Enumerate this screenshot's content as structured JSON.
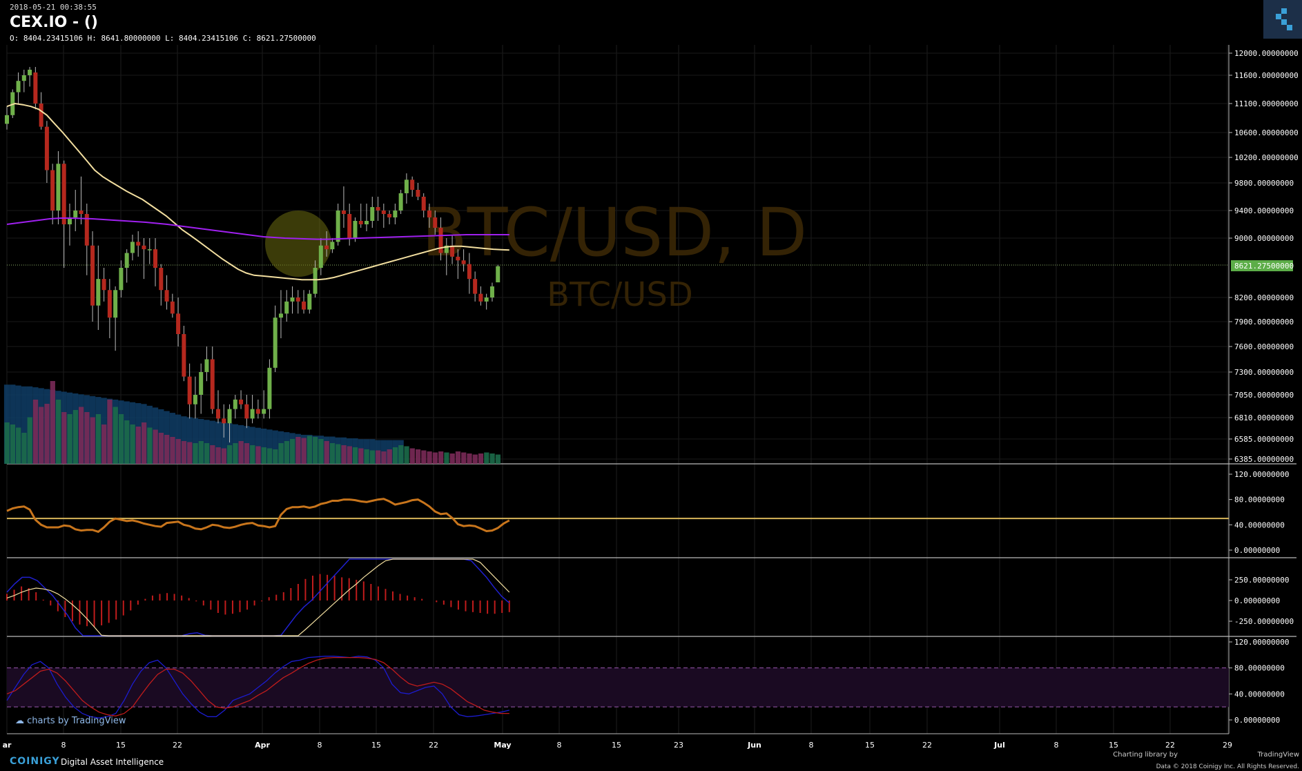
{
  "header": {
    "timestamp": "2018-05-21 00:38:55",
    "title": "CEX.IO -  ()",
    "ohlc": "O: 8404.23415106 H: 8641.80000000 L: 8404.23415106 C: 8621.27500000"
  },
  "watermark": {
    "big": "BTC/USD, D",
    "small": "BTC/USD"
  },
  "last_price_label": "8621.27500000",
  "footer": {
    "tv_brand": "charts by TradingView",
    "coinigy": "COINIGY",
    "tagline": "Digital Asset Intelligence",
    "charting_lib": "Charting library by",
    "tv_name": "TradingView",
    "data_credit": "Data © 2018  Coinigy Inc. All Rights Reserved."
  },
  "colors": {
    "up": "#6fb04a",
    "down": "#b5281e",
    "ma_fast": "#f3dfa0",
    "ma_slow": "#a020f0",
    "rsi": "#c8751c",
    "macd": "#2020d0",
    "signal": "#f3dfa0",
    "stoch_k": "#1c1ccf",
    "stoch_d": "#c01c1c",
    "accent": "#3aa0d8"
  },
  "chart_data": [
    {
      "type": "candlestick",
      "title": "BTC/USD, D",
      "price_axis_ticks": [
        "12000.00000000",
        "11600.00000000",
        "11100.00000000",
        "10600.00000000",
        "10200.00000000",
        "9800.00000000",
        "9400.00000000",
        "9000.00000000",
        "8200.00000000",
        "7900.00000000",
        "7600.00000000",
        "7300.00000000",
        "7050.00000000",
        "6810.00000000",
        "6585.00000000",
        "6385.00000000"
      ],
      "time_axis_labels": [
        "ar",
        "8",
        "15",
        "22",
        "Apr",
        "8",
        "15",
        "22",
        "May",
        "8",
        "15",
        "23",
        "Jun",
        "8",
        "15",
        "22",
        "Jul",
        "8",
        "15",
        "22",
        "29"
      ],
      "candles": [
        [
          10750,
          11050,
          10650,
          10900
        ],
        [
          10900,
          11350,
          10850,
          11300
        ],
        [
          11300,
          11650,
          11100,
          11500
        ],
        [
          11500,
          11700,
          11300,
          11600
        ],
        [
          11600,
          11750,
          11400,
          11700
        ],
        [
          11650,
          11750,
          11000,
          11100
        ],
        [
          11100,
          11300,
          10650,
          10700
        ],
        [
          10700,
          10800,
          9800,
          10000
        ],
        [
          10000,
          10100,
          9200,
          9400
        ],
        [
          9400,
          10300,
          9200,
          10100
        ],
        [
          10100,
          10150,
          8600,
          9200
        ],
        [
          9200,
          9500,
          8900,
          9300
        ],
        [
          9300,
          9700,
          9100,
          9400
        ],
        [
          9400,
          9900,
          9200,
          9350
        ],
        [
          9350,
          9500,
          8500,
          8900
        ],
        [
          8900,
          9100,
          7900,
          8100
        ],
        [
          8100,
          8900,
          7800,
          8450
        ],
        [
          8450,
          8600,
          8150,
          8300
        ],
        [
          8300,
          8450,
          7700,
          7950
        ],
        [
          7950,
          8350,
          7550,
          8300
        ],
        [
          8300,
          8700,
          8200,
          8600
        ],
        [
          8600,
          8850,
          8400,
          8800
        ],
        [
          8800,
          9050,
          8700,
          8950
        ],
        [
          8950,
          9100,
          8750,
          8900
        ],
        [
          8900,
          9000,
          8450,
          8850
        ],
        [
          8850,
          9000,
          8650,
          8850
        ],
        [
          8850,
          9000,
          8350,
          8600
        ],
        [
          8600,
          8650,
          8100,
          8300
        ],
        [
          8300,
          8500,
          8050,
          8150
        ],
        [
          8150,
          8250,
          7950,
          8000
        ],
        [
          8000,
          8200,
          7600,
          7750
        ],
        [
          7750,
          7850,
          7200,
          7250
        ],
        [
          7250,
          7400,
          6800,
          6950
        ],
        [
          6950,
          7250,
          6800,
          7050
        ],
        [
          7050,
          7400,
          6850,
          7300
        ],
        [
          7300,
          7600,
          7200,
          7450
        ],
        [
          7450,
          7600,
          6850,
          6900
        ],
        [
          6900,
          7100,
          6750,
          6800
        ],
        [
          6800,
          6950,
          6600,
          6750
        ],
        [
          6750,
          6950,
          6550,
          6900
        ],
        [
          6900,
          7050,
          6800,
          7000
        ],
        [
          7000,
          7100,
          6900,
          6950
        ],
        [
          6950,
          7050,
          6700,
          6800
        ],
        [
          6800,
          7050,
          6750,
          6900
        ],
        [
          6900,
          7000,
          6800,
          6850
        ],
        [
          6850,
          7100,
          6800,
          6900
        ],
        [
          6900,
          7450,
          6800,
          7350
        ],
        [
          7350,
          8100,
          7300,
          7950
        ],
        [
          7950,
          8300,
          7700,
          8000
        ],
        [
          8000,
          8300,
          7900,
          8150
        ],
        [
          8150,
          8350,
          8000,
          8200
        ],
        [
          8200,
          8300,
          8000,
          8150
        ],
        [
          8150,
          8300,
          8000,
          8050
        ],
        [
          8050,
          8300,
          8000,
          8250
        ],
        [
          8250,
          8700,
          8200,
          8600
        ],
        [
          8600,
          9000,
          8500,
          8900
        ],
        [
          8900,
          9100,
          8750,
          8850
        ],
        [
          8850,
          9000,
          8800,
          8950
        ],
        [
          8950,
          9500,
          8900,
          9400
        ],
        [
          9400,
          9750,
          9150,
          9350
        ],
        [
          9350,
          9500,
          8900,
          9000
        ],
        [
          9000,
          9300,
          8950,
          9250
        ],
        [
          9250,
          9500,
          9150,
          9200
        ],
        [
          9200,
          9500,
          9100,
          9250
        ],
        [
          9250,
          9600,
          9150,
          9450
        ],
        [
          9450,
          9600,
          9250,
          9400
        ],
        [
          9400,
          9500,
          9150,
          9350
        ],
        [
          9350,
          9400,
          9200,
          9300
        ],
        [
          9300,
          9500,
          9200,
          9400
        ],
        [
          9400,
          9700,
          9350,
          9650
        ],
        [
          9650,
          9950,
          9500,
          9850
        ],
        [
          9850,
          9900,
          9600,
          9700
        ],
        [
          9700,
          9800,
          9550,
          9600
        ],
        [
          9600,
          9650,
          9300,
          9400
        ],
        [
          9400,
          9500,
          9150,
          9300
        ],
        [
          9300,
          9400,
          9050,
          9150
        ],
        [
          9150,
          9300,
          8700,
          8800
        ],
        [
          8800,
          9000,
          8500,
          8900
        ],
        [
          8900,
          9050,
          8650,
          8750
        ],
        [
          8750,
          8850,
          8450,
          8700
        ],
        [
          8700,
          8850,
          8550,
          8650
        ],
        [
          8650,
          8800,
          8250,
          8450
        ],
        [
          8450,
          8550,
          8150,
          8250
        ],
        [
          8250,
          8350,
          8100,
          8150
        ],
        [
          8150,
          8250,
          8050,
          8200
        ],
        [
          8200,
          8400,
          8150,
          8350
        ],
        [
          8404.23,
          8641.8,
          8404.23,
          8621.28
        ]
      ],
      "ma_fast": [
        11050,
        11100,
        11080,
        11050,
        11000,
        10900,
        10750,
        10600,
        10450,
        10300,
        10150,
        10000,
        9900,
        9820,
        9750,
        9680,
        9620,
        9560,
        9480,
        9400,
        9320,
        9220,
        9120,
        9040,
        8960,
        8880,
        8800,
        8720,
        8650,
        8580,
        8530,
        8500,
        8490,
        8480,
        8470,
        8460,
        8450,
        8440,
        8440,
        8440,
        8450,
        8470,
        8500,
        8530,
        8560,
        8590,
        8620,
        8650,
        8680,
        8710,
        8740,
        8770,
        8800,
        8830,
        8860,
        8880,
        8890,
        8890,
        8880,
        8870,
        8860,
        8850,
        8845,
        8840
      ],
      "ma_slow": [
        9200,
        9220,
        9240,
        9260,
        9280,
        9290,
        9290,
        9285,
        9280,
        9270,
        9260,
        9250,
        9240,
        9230,
        9215,
        9200,
        9180,
        9160,
        9140,
        9120,
        9100,
        9080,
        9060,
        9040,
        9020,
        9010,
        9000,
        8995,
        8990,
        8985,
        8985,
        8990,
        8995,
        9000,
        9005,
        9010,
        9015,
        9020,
        9025,
        9030,
        9035,
        9040,
        9045,
        9050,
        9050,
        9050,
        9050,
        9050
      ],
      "volume": [
        40,
        38,
        35,
        30,
        45,
        62,
        55,
        58,
        80,
        62,
        50,
        48,
        52,
        55,
        50,
        45,
        48,
        38,
        62,
        55,
        48,
        42,
        38,
        36,
        40,
        35,
        33,
        30,
        28,
        26,
        24,
        22,
        21,
        20,
        22,
        20,
        18,
        16,
        15,
        18,
        20,
        22,
        20,
        18,
        17,
        16,
        15,
        14,
        20,
        22,
        24,
        26,
        25,
        27,
        26,
        24,
        22,
        20,
        19,
        18,
        17,
        16,
        15,
        14,
        13,
        13,
        12,
        14,
        16,
        18,
        17,
        15,
        14,
        13,
        12,
        11,
        12,
        11,
        10,
        12,
        11,
        10,
        9,
        10,
        11,
        10,
        9
      ],
      "volume_ma": [
        90,
        90,
        89,
        88,
        88,
        87,
        86,
        85,
        84,
        83,
        82,
        81,
        80,
        79,
        78,
        77,
        76,
        75,
        74,
        73,
        72,
        71,
        70,
        69,
        68,
        66,
        64,
        62,
        60,
        58,
        56,
        54,
        53,
        52,
        51,
        50,
        49,
        48,
        47,
        46,
        45,
        44,
        43,
        42,
        41,
        40,
        39,
        38,
        37,
        36,
        35,
        34,
        33,
        33,
        32,
        32,
        31,
        31,
        30,
        30,
        29,
        29,
        28,
        28,
        28,
        27,
        27,
        27,
        27,
        27
      ]
    },
    {
      "type": "line",
      "title": "RSI",
      "axis_ticks": [
        "120.00000000",
        "80.00000000",
        "40.00000000",
        "0.00000000"
      ],
      "level": 50,
      "values": [
        62,
        66,
        68,
        69,
        64,
        48,
        40,
        36,
        36,
        36,
        39,
        38,
        33,
        31,
        32,
        32,
        29,
        36,
        45,
        50,
        48,
        46,
        47,
        45,
        42,
        40,
        38,
        37,
        43,
        44,
        45,
        40,
        38,
        34,
        33,
        36,
        40,
        39,
        36,
        35,
        37,
        40,
        42,
        43,
        39,
        38,
        36,
        38,
        56,
        65,
        68,
        68,
        69,
        67,
        69,
        73,
        75,
        78,
        78,
        80,
        80,
        79,
        77,
        76,
        78,
        80,
        81,
        77,
        72,
        74,
        76,
        79,
        80,
        75,
        69,
        61,
        57,
        58,
        51,
        41,
        38,
        39,
        38,
        34,
        30,
        31,
        35,
        42,
        47
      ]
    },
    {
      "type": "line",
      "title": "MACD",
      "axis_ticks": [
        "250.00000000",
        "0.00000000",
        "-250.00000000"
      ],
      "series": [
        {
          "values": [
            100,
            200,
            280,
            280,
            240,
            150,
            60,
            -60,
            -180,
            -330,
            -480,
            -600,
            -700,
            -780,
            -850,
            -900,
            -950,
            -920,
            -850,
            -780,
            -680,
            -580,
            -490,
            -430,
            -400,
            -390,
            -420,
            -480,
            -560,
            -680,
            -820,
            -920,
            -900,
            -850,
            -700,
            -550,
            -420,
            -300,
            -180,
            -80,
            0,
            100,
            200,
            300,
            400,
            500,
            550,
            600,
            600,
            650,
            700,
            750,
            800,
            820,
            830,
            810,
            790,
            790,
            780,
            700,
            600,
            480,
            380,
            280,
            160,
            50,
            -30
          ]
        },
        {
          "values": [
            30,
            60,
            100,
            130,
            150,
            140,
            120,
            80,
            20,
            -50,
            -130,
            -220,
            -320,
            -420,
            -500,
            -580,
            -650,
            -690,
            -710,
            -720,
            -710,
            -690,
            -660,
            -630,
            -600,
            -570,
            -560,
            -570,
            -590,
            -620,
            -660,
            -710,
            -740,
            -760,
            -750,
            -720,
            -680,
            -630,
            -570,
            -500,
            -430,
            -350,
            -270,
            -190,
            -110,
            -30,
            50,
            130,
            200,
            280,
            350,
            420,
            480,
            540,
            600,
            640,
            680,
            700,
            710,
            710,
            700,
            680,
            650,
            600,
            540,
            460,
            370,
            280,
            190,
            100
          ]
        }
      ],
      "histogram": [
        80,
        130,
        170,
        150,
        100,
        10,
        -60,
        -130,
        -200,
        -250,
        -290,
        -310,
        -320,
        -300,
        -270,
        -230,
        -180,
        -120,
        -50,
        20,
        60,
        80,
        90,
        80,
        60,
        30,
        -10,
        -60,
        -110,
        -150,
        -170,
        -160,
        -140,
        -110,
        -60,
        -10,
        40,
        70,
        100,
        150,
        200,
        260,
        300,
        320,
        310,
        300,
        280,
        270,
        250,
        230,
        200,
        170,
        140,
        110,
        80,
        60,
        40,
        20,
        0,
        -20,
        -50,
        -80,
        -110,
        -130,
        -140,
        -150,
        -160,
        -160,
        -150,
        -140
      ]
    },
    {
      "type": "line",
      "title": "Stochastic",
      "axis_ticks": [
        "120.00000000",
        "80.00000000",
        "40.00000000",
        "0.00000000"
      ],
      "band": [
        20,
        80
      ],
      "series": [
        {
          "values": [
            30,
            50,
            70,
            85,
            90,
            80,
            55,
            35,
            20,
            10,
            5,
            3,
            5,
            10,
            30,
            55,
            75,
            88,
            92,
            80,
            60,
            40,
            25,
            12,
            5,
            5,
            15,
            30,
            35,
            40,
            50,
            60,
            72,
            82,
            90,
            92,
            96,
            97,
            98,
            98,
            97,
            96,
            98,
            97,
            92,
            80,
            55,
            42,
            40,
            45,
            50,
            52,
            40,
            20,
            8,
            5,
            6,
            8,
            10,
            12,
            15
          ]
        },
        {
          "values": [
            40,
            45,
            55,
            65,
            75,
            78,
            72,
            60,
            45,
            30,
            20,
            12,
            8,
            6,
            10,
            20,
            38,
            55,
            70,
            78,
            78,
            72,
            60,
            45,
            30,
            20,
            18,
            20,
            25,
            30,
            38,
            45,
            55,
            65,
            72,
            80,
            87,
            92,
            95,
            96,
            96,
            96,
            96,
            95,
            93,
            88,
            78,
            66,
            56,
            52,
            55,
            58,
            55,
            48,
            38,
            28,
            22,
            15,
            12,
            10,
            10
          ]
        }
      ]
    }
  ]
}
